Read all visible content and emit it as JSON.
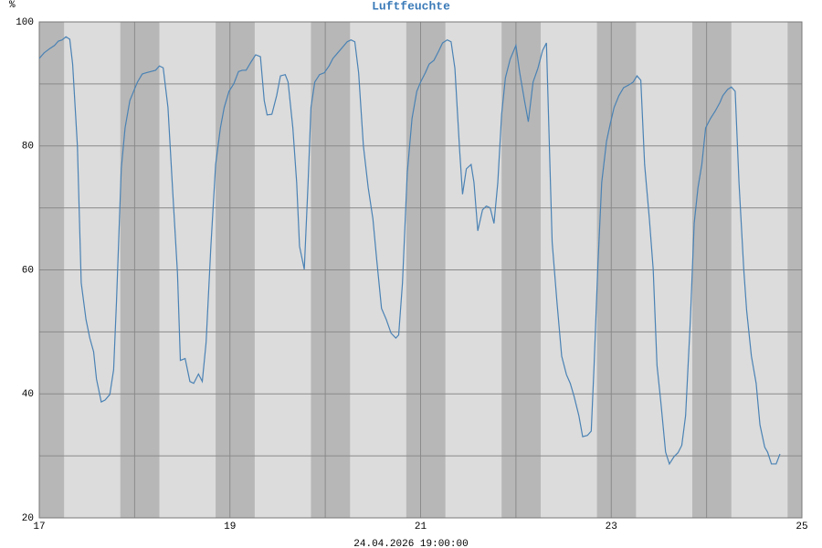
{
  "chart_data": {
    "type": "line",
    "title": "Luftfeuchte",
    "y_unit": "%",
    "xlabel": "24.04.2026 19:00:00",
    "xlim": [
      17,
      25
    ],
    "xticks": [
      17,
      19,
      21,
      23,
      25
    ],
    "ylim": [
      20,
      100
    ],
    "yticks": [
      20,
      40,
      60,
      80,
      100
    ],
    "grid": true,
    "x": [
      17.0,
      17.05,
      17.11,
      17.16,
      17.2,
      17.24,
      17.28,
      17.32,
      17.35,
      17.4,
      17.44,
      17.49,
      17.53,
      17.57,
      17.6,
      17.65,
      17.69,
      17.74,
      17.78,
      17.81,
      17.86,
      17.9,
      17.95,
      18.0,
      18.03,
      18.08,
      18.12,
      18.17,
      18.22,
      18.26,
      18.3,
      18.35,
      18.4,
      18.45,
      18.48,
      18.53,
      18.58,
      18.62,
      18.67,
      18.71,
      18.75,
      18.8,
      18.85,
      18.9,
      18.94,
      18.99,
      19.04,
      19.09,
      19.13,
      19.17,
      19.22,
      19.27,
      19.32,
      19.36,
      19.39,
      19.44,
      19.49,
      19.53,
      19.58,
      19.61,
      19.66,
      19.7,
      19.73,
      19.78,
      19.82,
      19.85,
      19.89,
      19.94,
      19.99,
      20.04,
      20.08,
      20.13,
      20.18,
      20.23,
      20.27,
      20.31,
      20.35,
      20.4,
      20.45,
      20.5,
      20.54,
      20.59,
      20.64,
      20.69,
      20.74,
      20.77,
      20.81,
      20.86,
      20.91,
      20.96,
      21.0,
      21.05,
      21.09,
      21.14,
      21.19,
      21.23,
      21.28,
      21.32,
      21.36,
      21.41,
      21.44,
      21.48,
      21.53,
      21.56,
      21.6,
      21.65,
      21.69,
      21.73,
      21.77,
      21.81,
      21.85,
      21.89,
      21.94,
      22.0,
      22.04,
      22.09,
      22.13,
      22.18,
      22.23,
      22.28,
      22.32,
      22.34,
      22.38,
      22.43,
      22.48,
      22.53,
      22.57,
      22.61,
      22.66,
      22.7,
      22.75,
      22.79,
      22.82,
      22.86,
      22.9,
      22.95,
      22.99,
      23.03,
      23.08,
      23.13,
      23.18,
      23.23,
      23.27,
      23.31,
      23.35,
      23.4,
      23.44,
      23.48,
      23.52,
      23.57,
      23.61,
      23.66,
      23.7,
      23.74,
      23.78,
      23.83,
      23.87,
      23.91,
      23.95,
      23.99,
      24.04,
      24.09,
      24.14,
      24.17,
      24.22,
      24.26,
      24.3,
      24.34,
      24.39,
      24.42,
      24.47,
      24.52,
      24.56,
      24.61,
      24.64,
      24.68,
      24.73,
      24.77
    ],
    "series": [
      {
        "name": "Luftfeuchte",
        "color": "#4a82b4",
        "values": [
          94.1,
          95.0,
          95.7,
          96.2,
          96.9,
          97.1,
          97.6,
          97.2,
          93.2,
          80.0,
          57.9,
          52.0,
          49.0,
          46.8,
          42.4,
          38.7,
          39.0,
          39.9,
          43.9,
          54.9,
          76.3,
          82.9,
          87.3,
          89.2,
          90.3,
          91.6,
          91.8,
          92.0,
          92.2,
          92.9,
          92.6,
          86.2,
          72.6,
          59.4,
          45.4,
          45.7,
          42.0,
          41.7,
          43.2,
          42.0,
          48.3,
          63.8,
          77.0,
          82.9,
          86.2,
          88.8,
          90.0,
          92.0,
          92.2,
          92.2,
          93.5,
          94.7,
          94.4,
          87.3,
          85.0,
          85.1,
          88.1,
          91.3,
          91.5,
          90.3,
          82.9,
          74.1,
          63.8,
          60.1,
          74.1,
          86.2,
          90.3,
          91.5,
          91.8,
          92.9,
          94.1,
          95.0,
          95.9,
          96.8,
          97.1,
          96.8,
          91.8,
          80.0,
          73.3,
          68.2,
          61.6,
          53.8,
          52.0,
          49.8,
          49.0,
          49.5,
          57.9,
          75.6,
          84.4,
          88.8,
          90.3,
          91.8,
          93.2,
          93.8,
          95.3,
          96.6,
          97.1,
          96.8,
          92.5,
          79.2,
          72.2,
          76.3,
          77.0,
          74.1,
          66.3,
          69.7,
          70.3,
          70.0,
          67.5,
          74.1,
          85.1,
          91.0,
          94.0,
          96.2,
          91.8,
          87.3,
          83.9,
          90.3,
          92.5,
          95.4,
          96.6,
          85.9,
          64.5,
          54.9,
          46.1,
          43.1,
          41.7,
          39.6,
          36.5,
          33.1,
          33.3,
          34.0,
          44.6,
          60.8,
          74.1,
          80.7,
          83.6,
          86.2,
          88.1,
          89.4,
          89.8,
          90.3,
          91.3,
          90.6,
          77.0,
          68.2,
          60.1,
          44.6,
          38.7,
          30.6,
          28.7,
          29.9,
          30.5,
          31.7,
          36.5,
          52.0,
          67.5,
          73.3,
          77.0,
          82.9,
          84.4,
          85.6,
          87.0,
          88.1,
          89.1,
          89.5,
          88.8,
          74.1,
          60.1,
          53.5,
          46.1,
          41.7,
          35.0,
          31.4,
          30.6,
          28.7,
          28.7,
          30.3
        ]
      }
    ]
  }
}
